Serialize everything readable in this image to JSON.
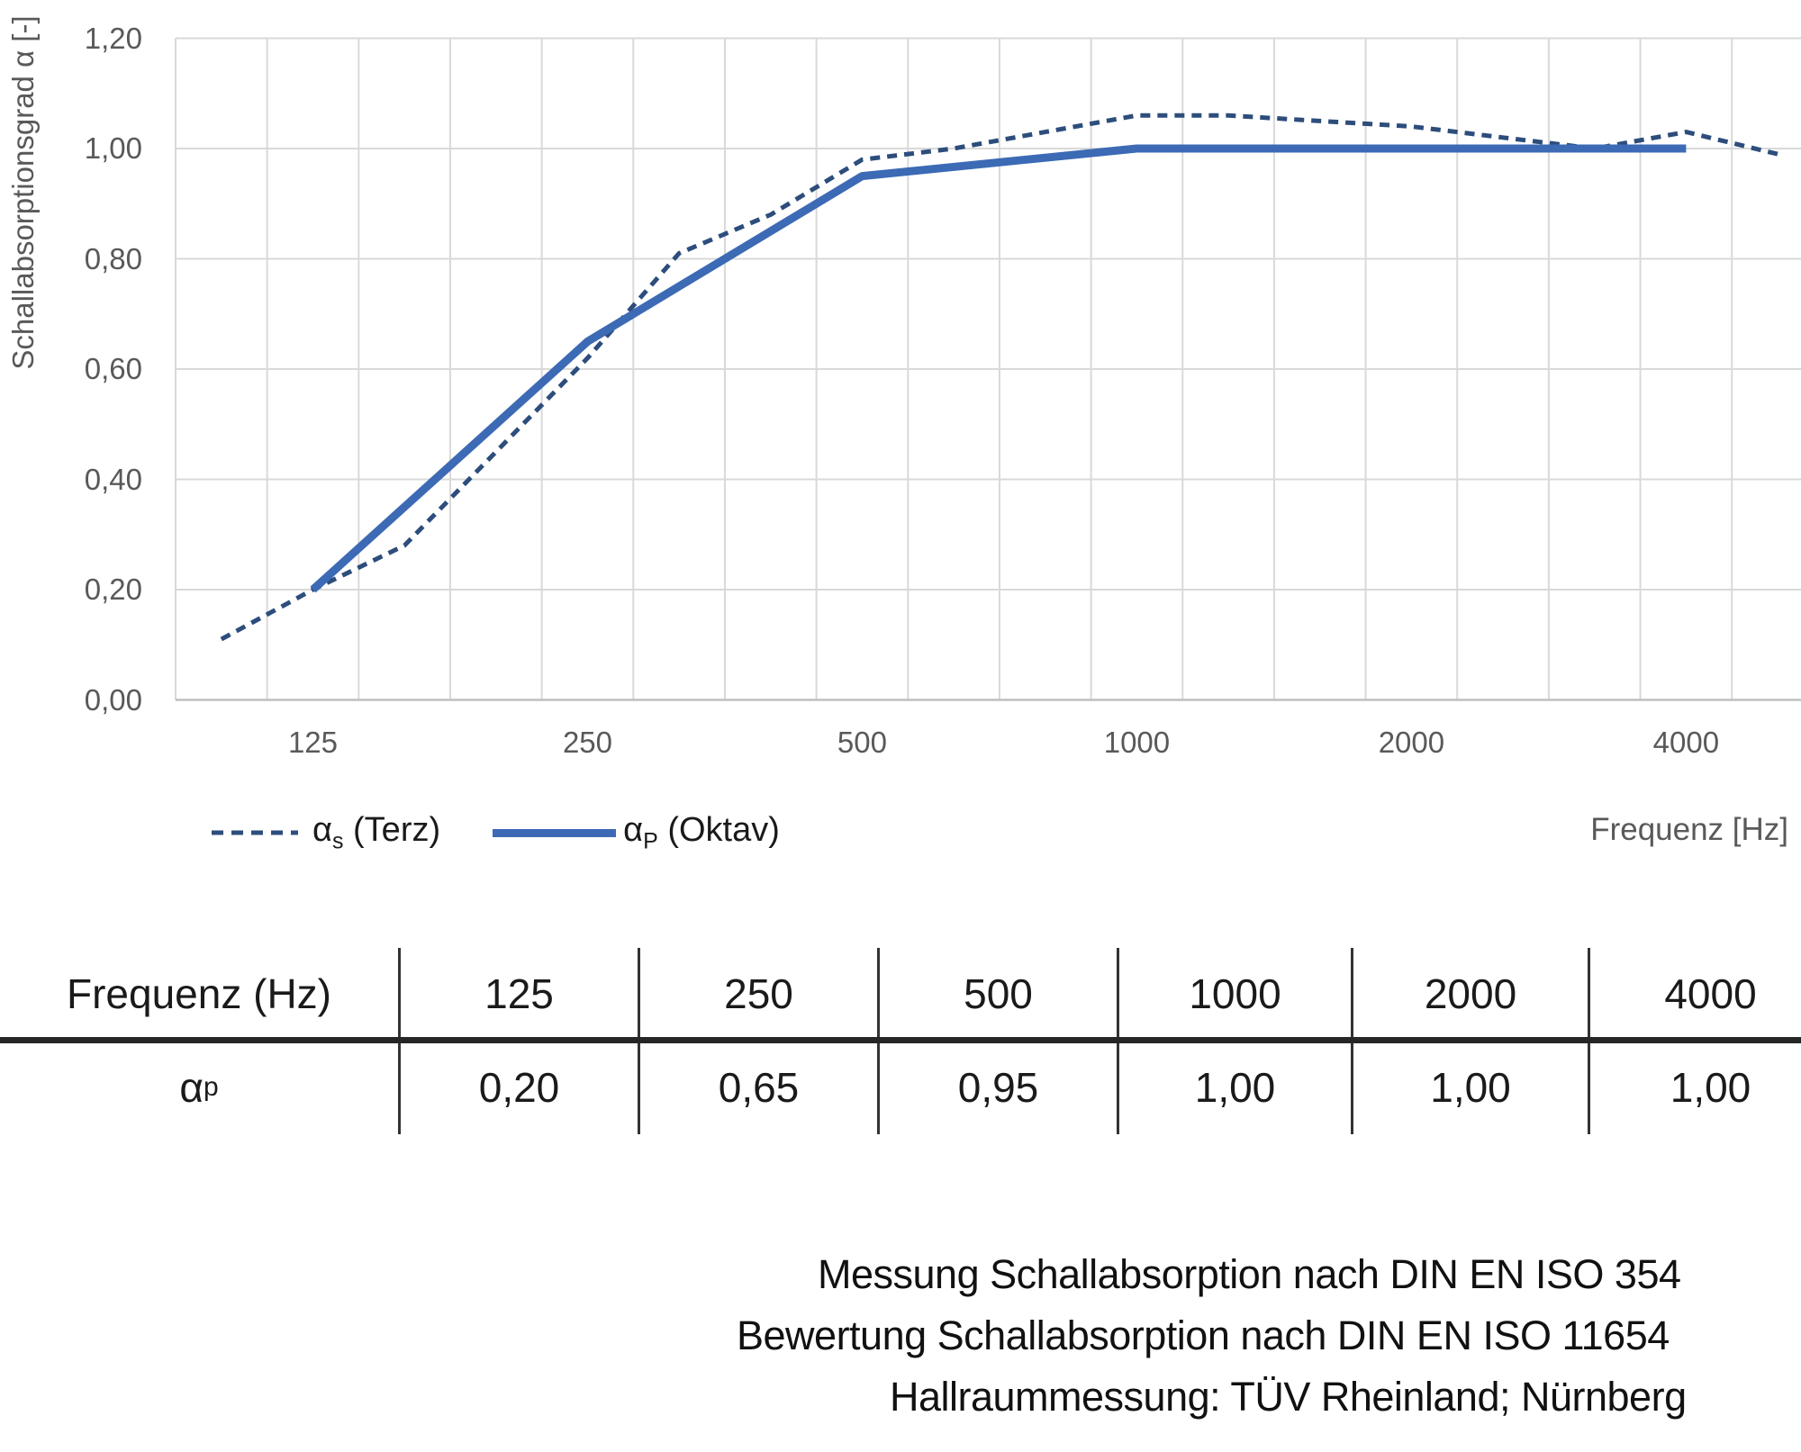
{
  "chart_data": {
    "type": "line",
    "title": "",
    "xlabel": "Frequenz [Hz]",
    "ylabel": "Schallabsorptionsgrad α [-]",
    "x_scale": "third-octave band categories (logarithmic frequency)",
    "ylim": [
      0,
      1.2
    ],
    "grid": true,
    "legend_position": "bottom-left",
    "categories": [
      100,
      125,
      160,
      200,
      250,
      315,
      400,
      500,
      630,
      800,
      1000,
      1250,
      1600,
      2000,
      2500,
      3150,
      4000,
      5000
    ],
    "x_tick_labels": [
      125,
      250,
      500,
      1000,
      2000,
      4000
    ],
    "y_tick_values": [
      1.2,
      1.0,
      0.8,
      0.6,
      0.4,
      0.2,
      0.0
    ],
    "y_tick_labels": [
      "1,20",
      "1,00",
      "0,80",
      "0,60",
      "0,40",
      "0,20",
      "0,00"
    ],
    "series": [
      {
        "name": "αs (Terz)",
        "legend": {
          "base": "α",
          "sub": "s",
          "suffix": " (Terz)"
        },
        "style": "dashed",
        "color": "#2d4d7c",
        "x": [
          100,
          125,
          160,
          200,
          250,
          315,
          400,
          500,
          630,
          800,
          1000,
          1250,
          1600,
          2000,
          2500,
          3150,
          4000,
          5000
        ],
        "values": [
          0.11,
          0.2,
          0.28,
          0.45,
          0.62,
          0.81,
          0.88,
          0.98,
          1.0,
          1.03,
          1.06,
          1.06,
          1.05,
          1.04,
          1.02,
          1.0,
          1.03,
          0.99
        ]
      },
      {
        "name": "αP (Oktav)",
        "legend": {
          "base": "α",
          "sub": "P",
          "suffix": " (Oktav)"
        },
        "style": "solid",
        "color": "#3c6ab5",
        "x": [
          125,
          250,
          500,
          1000,
          2000,
          4000
        ],
        "values": [
          0.2,
          0.65,
          0.95,
          1.0,
          1.0,
          1.0
        ]
      }
    ]
  },
  "table": {
    "header_label": "Frequenz (Hz)",
    "row_label": {
      "base": "α",
      "sub": "p"
    },
    "frequencies": [
      "125",
      "250",
      "500",
      "1000",
      "2000",
      "4000"
    ],
    "values": [
      "0,20",
      "0,65",
      "0,95",
      "1,00",
      "1,00",
      "1,00"
    ]
  },
  "footer": {
    "line1": "Messung Schallabsorption nach DIN EN ISO 354",
    "line2": "Bewertung Schallabsorption nach DIN EN ISO 11654",
    "line3": "Hallraummessung: TÜV Rheinland; Nürnberg"
  },
  "colors": {
    "series_terz": "#2d4d7c",
    "series_oktav": "#3c6ab5",
    "gridline": "#d9d9d9",
    "axis_line": "#bfbfbf",
    "tick_text": "#595959",
    "table_rule": "#262626"
  }
}
